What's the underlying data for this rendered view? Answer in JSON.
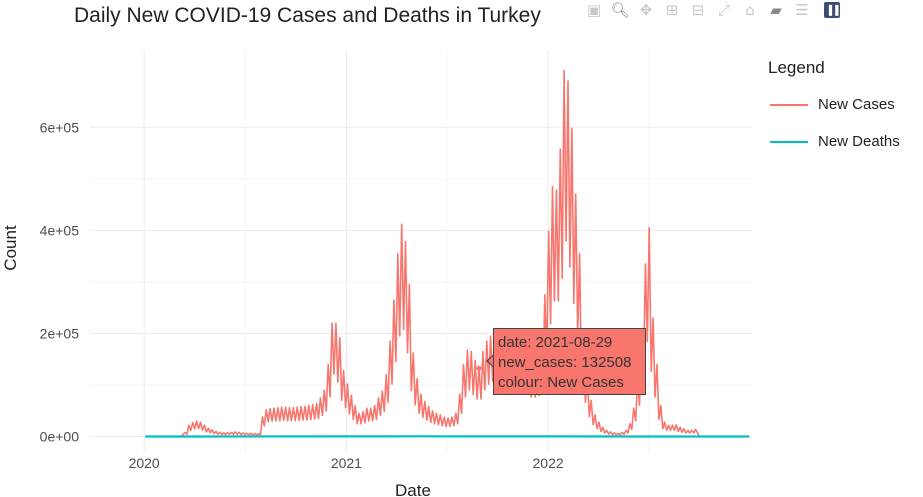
{
  "title": "Daily New COVID-19 Cases and Deaths in Turkey",
  "chart_data": {
    "type": "line",
    "title": "Daily New COVID-19 Cases and Deaths in Turkey",
    "xlabel": "Date",
    "ylabel": "Count",
    "x_ticks": [
      "2020",
      "2021",
      "2022"
    ],
    "y_ticks": [
      "0e+00",
      "2e+05",
      "4e+05",
      "6e+05"
    ],
    "xlim": [
      "2019-09-25",
      "2023-01-05"
    ],
    "ylim": [
      -30000,
      750000
    ],
    "grid": true,
    "legend_position": "right",
    "series": [
      {
        "name": "New Cases",
        "color": "#f8766d",
        "points": [
          [
            "2020-01-03",
            0
          ],
          [
            "2020-03-08",
            0
          ],
          [
            "2020-03-15",
            8000
          ],
          [
            "2020-03-22",
            22000
          ],
          [
            "2020-03-29",
            27000
          ],
          [
            "2020-04-05",
            30000
          ],
          [
            "2020-04-12",
            28000
          ],
          [
            "2020-04-19",
            22000
          ],
          [
            "2020-04-26",
            16000
          ],
          [
            "2020-05-03",
            13000
          ],
          [
            "2020-05-10",
            10000
          ],
          [
            "2020-05-17",
            8000
          ],
          [
            "2020-05-24",
            7000
          ],
          [
            "2020-05-31",
            7500
          ],
          [
            "2020-06-07",
            8000
          ],
          [
            "2020-06-14",
            9000
          ],
          [
            "2020-06-21",
            8000
          ],
          [
            "2020-06-28",
            7000
          ],
          [
            "2020-07-05",
            6500
          ],
          [
            "2020-07-12",
            6000
          ],
          [
            "2020-07-19",
            5500
          ],
          [
            "2020-07-26",
            5500
          ],
          [
            "2020-08-02",
            38000
          ],
          [
            "2020-08-09",
            52000
          ],
          [
            "2020-08-16",
            54000
          ],
          [
            "2020-08-23",
            55000
          ],
          [
            "2020-08-30",
            56000
          ],
          [
            "2020-09-06",
            57000
          ],
          [
            "2020-09-13",
            57000
          ],
          [
            "2020-09-20",
            56000
          ],
          [
            "2020-09-27",
            56000
          ],
          [
            "2020-10-04",
            57000
          ],
          [
            "2020-10-11",
            58000
          ],
          [
            "2020-10-18",
            58000
          ],
          [
            "2020-10-25",
            60000
          ],
          [
            "2020-11-01",
            62000
          ],
          [
            "2020-11-08",
            64000
          ],
          [
            "2020-11-15",
            75000
          ],
          [
            "2020-11-22",
            90000
          ],
          [
            "2020-11-29",
            140000
          ],
          [
            "2020-12-06",
            220000
          ],
          [
            "2020-12-13",
            220000
          ],
          [
            "2020-12-20",
            192000
          ],
          [
            "2020-12-27",
            128000
          ],
          [
            "2021-01-03",
            102000
          ],
          [
            "2021-01-10",
            80000
          ],
          [
            "2021-01-17",
            60000
          ],
          [
            "2021-01-24",
            45000
          ],
          [
            "2021-01-31",
            48000
          ],
          [
            "2021-02-07",
            55000
          ],
          [
            "2021-02-14",
            55000
          ],
          [
            "2021-02-21",
            60000
          ],
          [
            "2021-02-28",
            75000
          ],
          [
            "2021-03-07",
            88000
          ],
          [
            "2021-03-14",
            120000
          ],
          [
            "2021-03-21",
            185000
          ],
          [
            "2021-03-28",
            265000
          ],
          [
            "2021-04-04",
            355000
          ],
          [
            "2021-04-11",
            412000
          ],
          [
            "2021-04-18",
            378000
          ],
          [
            "2021-04-25",
            295000
          ],
          [
            "2021-05-02",
            162000
          ],
          [
            "2021-05-09",
            112000
          ],
          [
            "2021-05-16",
            82000
          ],
          [
            "2021-05-23",
            68000
          ],
          [
            "2021-05-30",
            58000
          ],
          [
            "2021-06-06",
            50000
          ],
          [
            "2021-06-13",
            45000
          ],
          [
            "2021-06-20",
            42000
          ],
          [
            "2021-06-27",
            38000
          ],
          [
            "2021-07-04",
            36000
          ],
          [
            "2021-07-11",
            38000
          ],
          [
            "2021-07-18",
            45000
          ],
          [
            "2021-07-25",
            82000
          ],
          [
            "2021-08-01",
            140000
          ],
          [
            "2021-08-08",
            168000
          ],
          [
            "2021-08-15",
            165000
          ],
          [
            "2021-08-22",
            148000
          ],
          [
            "2021-08-29",
            132508
          ],
          [
            "2021-09-05",
            165000
          ],
          [
            "2021-09-12",
            185000
          ],
          [
            "2021-09-19",
            195000
          ],
          [
            "2021-09-26",
            205000
          ],
          [
            "2021-10-03",
            210000
          ],
          [
            "2021-10-10",
            205000
          ],
          [
            "2021-10-17",
            195000
          ],
          [
            "2021-10-24",
            190000
          ],
          [
            "2021-10-31",
            185000
          ],
          [
            "2021-11-07",
            180000
          ],
          [
            "2021-11-14",
            170000
          ],
          [
            "2021-11-21",
            160000
          ],
          [
            "2021-11-28",
            150000
          ],
          [
            "2021-12-05",
            140000
          ],
          [
            "2021-12-12",
            145000
          ],
          [
            "2021-12-19",
            155000
          ],
          [
            "2021-12-26",
            275000
          ],
          [
            "2022-01-02",
            398000
          ],
          [
            "2022-01-09",
            485000
          ],
          [
            "2022-01-16",
            478000
          ],
          [
            "2022-01-23",
            558000
          ],
          [
            "2022-01-30",
            710000
          ],
          [
            "2022-02-06",
            690000
          ],
          [
            "2022-02-13",
            598000
          ],
          [
            "2022-02-20",
            470000
          ],
          [
            "2022-02-27",
            355000
          ],
          [
            "2022-03-06",
            200000
          ],
          [
            "2022-03-13",
            120000
          ],
          [
            "2022-03-20",
            70000
          ],
          [
            "2022-03-27",
            42000
          ],
          [
            "2022-04-03",
            28000
          ],
          [
            "2022-04-10",
            18000
          ],
          [
            "2022-04-17",
            12000
          ],
          [
            "2022-04-24",
            9000
          ],
          [
            "2022-05-01",
            7000
          ],
          [
            "2022-05-08",
            6000
          ],
          [
            "2022-05-15",
            8000
          ],
          [
            "2022-05-22",
            12000
          ],
          [
            "2022-05-29",
            25000
          ],
          [
            "2022-06-05",
            55000
          ],
          [
            "2022-06-12",
            110000
          ],
          [
            "2022-06-19",
            200000
          ],
          [
            "2022-06-26",
            335000
          ],
          [
            "2022-07-03",
            405000
          ],
          [
            "2022-07-10",
            230000
          ],
          [
            "2022-07-17",
            140000
          ],
          [
            "2022-07-24",
            60000
          ],
          [
            "2022-07-31",
            28000
          ],
          [
            "2022-08-07",
            22000
          ],
          [
            "2022-08-14",
            22000
          ],
          [
            "2022-08-21",
            23000
          ],
          [
            "2022-08-28",
            18000
          ],
          [
            "2022-09-04",
            15000
          ],
          [
            "2022-09-11",
            12000
          ],
          [
            "2022-09-18",
            12000
          ],
          [
            "2022-09-25",
            14000
          ],
          [
            "2022-10-02",
            0
          ],
          [
            "2022-12-31",
            0
          ]
        ]
      },
      {
        "name": "New Deaths",
        "color": "#00bfc4",
        "points": [
          [
            "2020-01-03",
            0
          ],
          [
            "2020-04-15",
            120
          ],
          [
            "2020-12-10",
            250
          ],
          [
            "2021-05-01",
            390
          ],
          [
            "2021-09-01",
            250
          ],
          [
            "2022-02-01",
            280
          ],
          [
            "2022-06-01",
            20
          ],
          [
            "2022-12-31",
            0
          ]
        ]
      }
    ]
  },
  "legend": {
    "title": "Legend",
    "items": [
      {
        "label": "New Cases",
        "color": "#f8766d"
      },
      {
        "label": "New Deaths",
        "color": "#00bfc4"
      }
    ]
  },
  "tooltip": {
    "line1": "date: 2021-08-29",
    "line2": "new_cases: 132508",
    "line3": "colour: New Cases",
    "anchor_date": "2021-08-29",
    "anchor_value": 132508
  },
  "modebar": {
    "icons": [
      "camera-icon",
      "zoom-icon",
      "pan-icon",
      "zoom-in-icon",
      "zoom-out-icon",
      "autoscale-icon",
      "reset-axes-icon",
      "spike-lines-icon",
      "compare-hover-icon",
      "plotly-logo-icon"
    ]
  }
}
